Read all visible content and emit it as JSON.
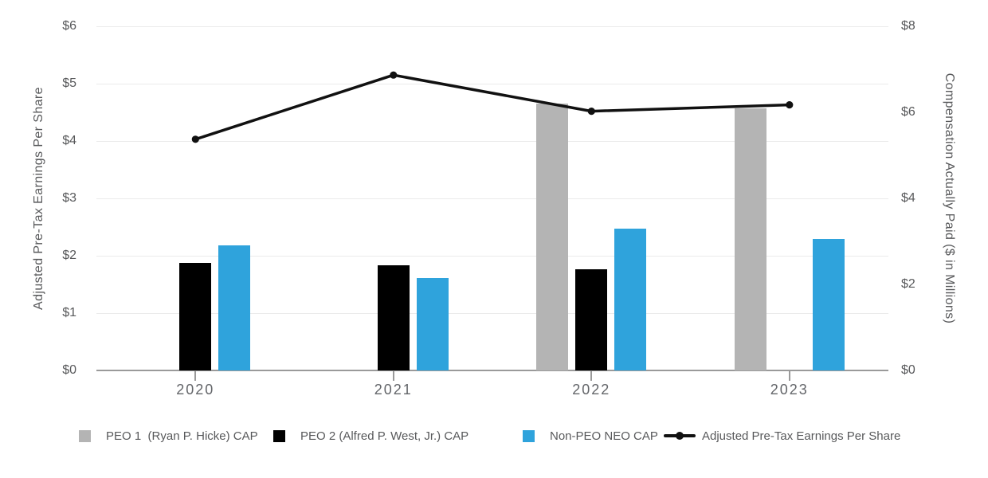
{
  "chart_data": {
    "type": "bar+line combo",
    "categories": [
      "2020",
      "2021",
      "2022",
      "2023"
    ],
    "bar_series": [
      {
        "name": "PEO 1  (Ryan P. Hicke) CAP",
        "color": "#b4b4b4",
        "axis": "right",
        "values": [
          null,
          null,
          6.2,
          6.1
        ]
      },
      {
        "name": "PEO 2 (Alfred P. West, Jr.) CAP",
        "color": "#000000",
        "axis": "right",
        "values": [
          2.5,
          2.45,
          2.35,
          null
        ]
      },
      {
        "name": "Non-PEO NEO CAP",
        "color": "#2fa3dc",
        "axis": "right",
        "values": [
          2.9,
          2.15,
          3.3,
          3.05
        ]
      }
    ],
    "line_series": {
      "name": "Adjusted Pre-Tax Earnings Per Share",
      "color": "#111111",
      "axis": "left",
      "values": [
        4.03,
        5.15,
        4.52,
        4.63
      ]
    },
    "left_axis": {
      "label": "Adjusted Pre-Tax Earnings Per Share",
      "min": 0,
      "max": 6,
      "tick_step": 1,
      "ticks": [
        "$0",
        "$1",
        "$2",
        "$3",
        "$4",
        "$5",
        "$6"
      ]
    },
    "right_axis": {
      "label": "Compensation Actually Paid ($ in Millions)",
      "min": 0,
      "max": 8,
      "tick_step": 2,
      "ticks": [
        "$0",
        "$2",
        "$4",
        "$6",
        "$8"
      ]
    },
    "grid": true,
    "legend_position": "bottom",
    "colors": {
      "grid": "#ebebeb",
      "axis_line": "#9a9a9a",
      "tick_text": "#58595b",
      "x_label_text": "#636569",
      "line": "#111111"
    }
  }
}
